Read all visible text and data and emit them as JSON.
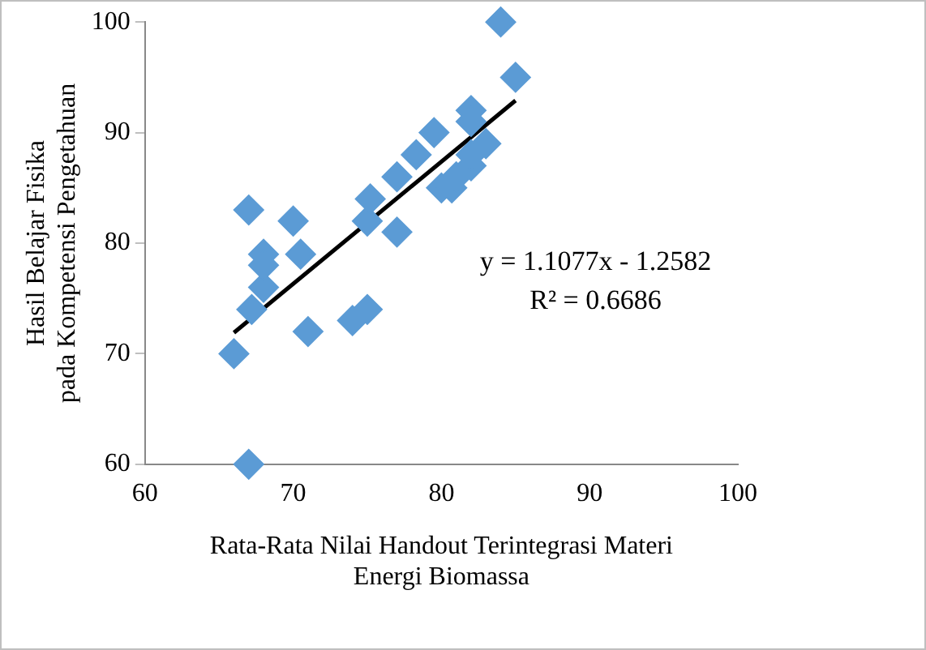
{
  "chart_data": {
    "type": "scatter",
    "xlabel": "Rata-Rata Nilai Handout Terintegrasi Materi\nEnergi Biomassa",
    "ylabel": "Hasil Belajar Fisika\npada Kompetensi Pengetahuan",
    "xlim": [
      60,
      100
    ],
    "xticks": [
      60,
      70,
      80,
      90,
      100
    ],
    "ylim": [
      60,
      100
    ],
    "yticks": [
      60,
      70,
      80,
      90,
      100
    ],
    "grid": false,
    "legend": false,
    "series": [
      {
        "color": "#5b9bd5",
        "marker": "diamond",
        "x": [
          66,
          67,
          67,
          67.2,
          68,
          68,
          68,
          70,
          70.5,
          71,
          74,
          75,
          75,
          75.2,
          77,
          77,
          78.3,
          79.5,
          80,
          80.7,
          81,
          82,
          82,
          82,
          82,
          83,
          84,
          85
        ],
        "values": [
          70,
          60,
          83,
          74,
          76,
          79,
          78,
          82,
          79,
          72,
          73,
          74,
          82,
          84,
          81,
          86,
          88,
          90,
          85,
          85,
          86,
          87,
          88,
          92,
          91,
          89,
          100,
          95
        ]
      },
      {
        "type": "line",
        "color": "#000000",
        "marker": "none",
        "x": [
          66,
          85
        ],
        "values": [
          71.9,
          92.9
        ]
      }
    ],
    "annotations": [
      "y = 1.1077x - 1.2582\nR² = 0.6686"
    ]
  }
}
